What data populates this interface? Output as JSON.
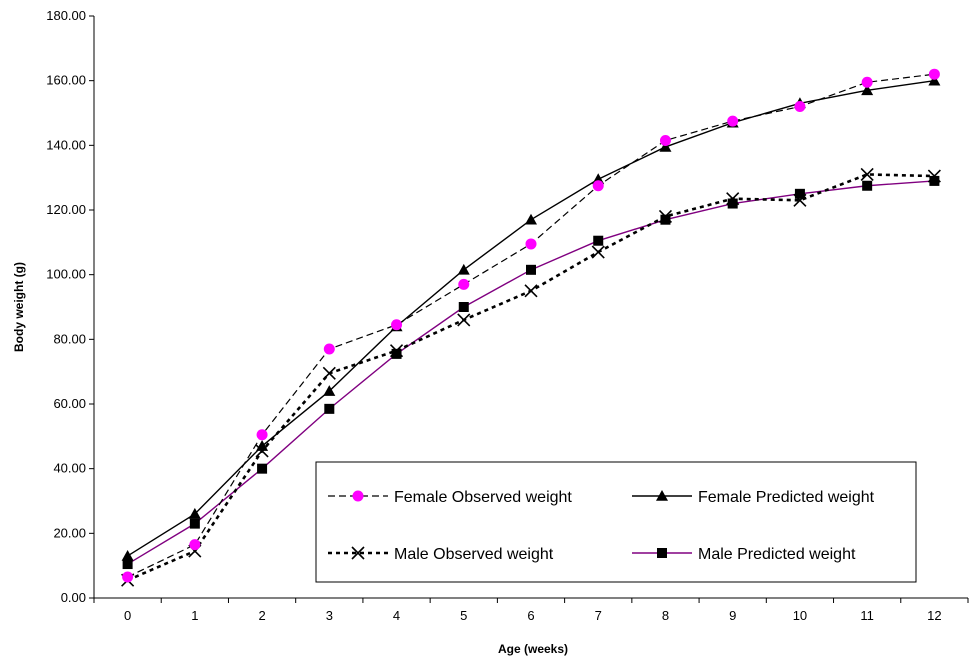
{
  "chart_data": {
    "type": "line",
    "xlabel": "Age (weeks)",
    "ylabel": "Body weight (g)",
    "ylim": [
      0,
      180
    ],
    "yticks": [
      "0.00",
      "20.00",
      "40.00",
      "60.00",
      "80.00",
      "100.00",
      "120.00",
      "140.00",
      "160.00",
      "180.00"
    ],
    "categories": [
      "0",
      "1",
      "2",
      "3",
      "4",
      "5",
      "6",
      "7",
      "8",
      "9",
      "10",
      "11",
      "12"
    ],
    "grid": false,
    "legend_position": "bottom-right",
    "series": [
      {
        "name": "Female Observed weight",
        "line": "dashed",
        "marker": "circle",
        "marker_color": "#ff00ff",
        "line_color": "#000000",
        "values": [
          6.5,
          16.5,
          50.5,
          77.0,
          84.5,
          97.0,
          109.5,
          127.5,
          141.5,
          147.5,
          152.0,
          159.5,
          162.0
        ]
      },
      {
        "name": "Female Predicted weight",
        "line": "solid",
        "marker": "triangle",
        "marker_color": "#000000",
        "line_color": "#000000",
        "values": [
          13.0,
          26.0,
          47.0,
          64.0,
          84.0,
          101.5,
          117.0,
          129.5,
          139.5,
          147.0,
          153.0,
          157.0,
          160.0
        ]
      },
      {
        "name": "Male Observed weight",
        "line": "dotted-bold",
        "marker": "x",
        "marker_color": "#000000",
        "line_color": "#000000",
        "values": [
          5.5,
          14.5,
          45.5,
          69.5,
          76.5,
          86.0,
          95.0,
          107.0,
          118.0,
          123.5,
          123.0,
          131.0,
          130.5
        ]
      },
      {
        "name": "Male Predicted weight",
        "line": "solid",
        "marker": "square",
        "marker_color": "#000000",
        "line_color": "#800080",
        "values": [
          10.5,
          23.0,
          40.0,
          58.5,
          75.5,
          90.0,
          101.5,
          110.5,
          117.0,
          122.0,
          125.0,
          127.5,
          129.0
        ]
      }
    ]
  }
}
